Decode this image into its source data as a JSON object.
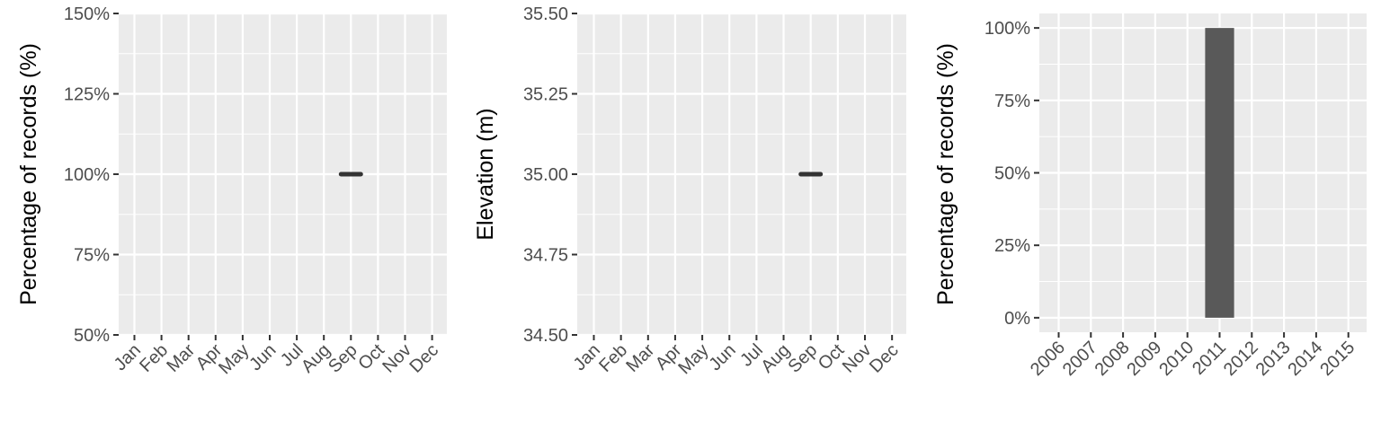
{
  "colors": {
    "panel": "#ebebeb",
    "grid": "#ffffff",
    "tick_text": "#4d4d4d",
    "mark": "#333333",
    "bar": "#595959"
  },
  "chart_data": [
    {
      "type": "scatter",
      "ylabel": "Percentage of records (%)",
      "categories": [
        "Jan",
        "Feb",
        "Mar",
        "Apr",
        "May",
        "Jun",
        "Jul",
        "Aug",
        "Sep",
        "Oct",
        "Nov",
        "Dec"
      ],
      "ylim": [
        50,
        150
      ],
      "yticks": [
        50,
        75,
        100,
        125,
        150
      ],
      "ytick_labels": [
        "50%",
        "75%",
        "100%",
        "125%",
        "150%"
      ],
      "points": [
        {
          "x": "Sep",
          "y": 100
        }
      ],
      "grid": true
    },
    {
      "type": "scatter",
      "ylabel": "Elevation (m)",
      "categories": [
        "Jan",
        "Feb",
        "Mar",
        "Apr",
        "May",
        "Jun",
        "Jul",
        "Aug",
        "Sep",
        "Oct",
        "Nov",
        "Dec"
      ],
      "ylim": [
        34.5,
        35.5
      ],
      "yticks": [
        34.5,
        34.75,
        35.0,
        35.25,
        35.5
      ],
      "ytick_labels": [
        "34.50",
        "34.75",
        "35.00",
        "35.25",
        "35.50"
      ],
      "points": [
        {
          "x": "Sep",
          "y": 35.0
        }
      ],
      "grid": true
    },
    {
      "type": "bar",
      "ylabel": "Percentage of records (%)",
      "categories": [
        "2006",
        "2007",
        "2008",
        "2009",
        "2010",
        "2011",
        "2012",
        "2013",
        "2014",
        "2015"
      ],
      "values": [
        0,
        0,
        0,
        0,
        0,
        100,
        0,
        0,
        0,
        0
      ],
      "ylim": [
        -5,
        105
      ],
      "yticks": [
        0,
        25,
        50,
        75,
        100
      ],
      "ytick_labels": [
        "0%",
        "25%",
        "50%",
        "75%",
        "100%"
      ],
      "grid": true
    }
  ]
}
